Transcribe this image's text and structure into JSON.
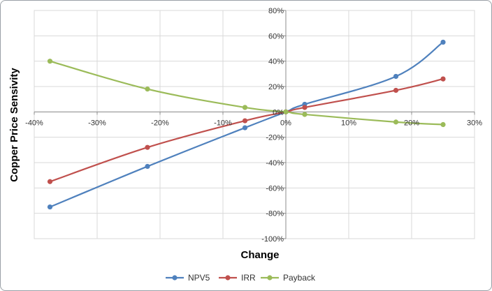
{
  "chart_data": {
    "type": "line",
    "xlabel": "Change",
    "ylabel": "Copper Price Sensivity",
    "xlim": [
      -40,
      30
    ],
    "ylim": [
      -100,
      80
    ],
    "x_ticks": [
      "-40%",
      "-30%",
      "-20%",
      "-10%",
      "0%",
      "10%",
      "20%",
      "30%"
    ],
    "y_ticks": [
      "80%",
      "60%",
      "40%",
      "20%",
      "0%",
      "-20%",
      "-40%",
      "-60%",
      "-80%",
      "-100%"
    ],
    "x_tick_values": [
      -40,
      -30,
      -20,
      -10,
      0,
      10,
      20,
      30
    ],
    "y_tick_values": [
      80,
      60,
      40,
      20,
      0,
      -20,
      -40,
      -60,
      -80,
      -100
    ],
    "grid": true,
    "legend_position": "bottom",
    "series": [
      {
        "name": "NPV5",
        "color": "#4f81bd",
        "points": [
          [
            -37.5,
            -75
          ],
          [
            -22,
            -43
          ],
          [
            -6.5,
            -12.5
          ],
          [
            0,
            0
          ],
          [
            3,
            6
          ],
          [
            17.5,
            28
          ],
          [
            25,
            55
          ]
        ]
      },
      {
        "name": "IRR",
        "color": "#c0504d",
        "points": [
          [
            -37.5,
            -55
          ],
          [
            -22,
            -28
          ],
          [
            -6.5,
            -7
          ],
          [
            0,
            0
          ],
          [
            3,
            3.5
          ],
          [
            17.5,
            17
          ],
          [
            25,
            26
          ]
        ]
      },
      {
        "name": "Payback",
        "color": "#9bbb59",
        "points": [
          [
            -37.5,
            40
          ],
          [
            -22,
            18
          ],
          [
            -6.5,
            3.5
          ],
          [
            0,
            0
          ],
          [
            3,
            -2
          ],
          [
            17.5,
            -8
          ],
          [
            25,
            -10
          ]
        ]
      }
    ]
  }
}
